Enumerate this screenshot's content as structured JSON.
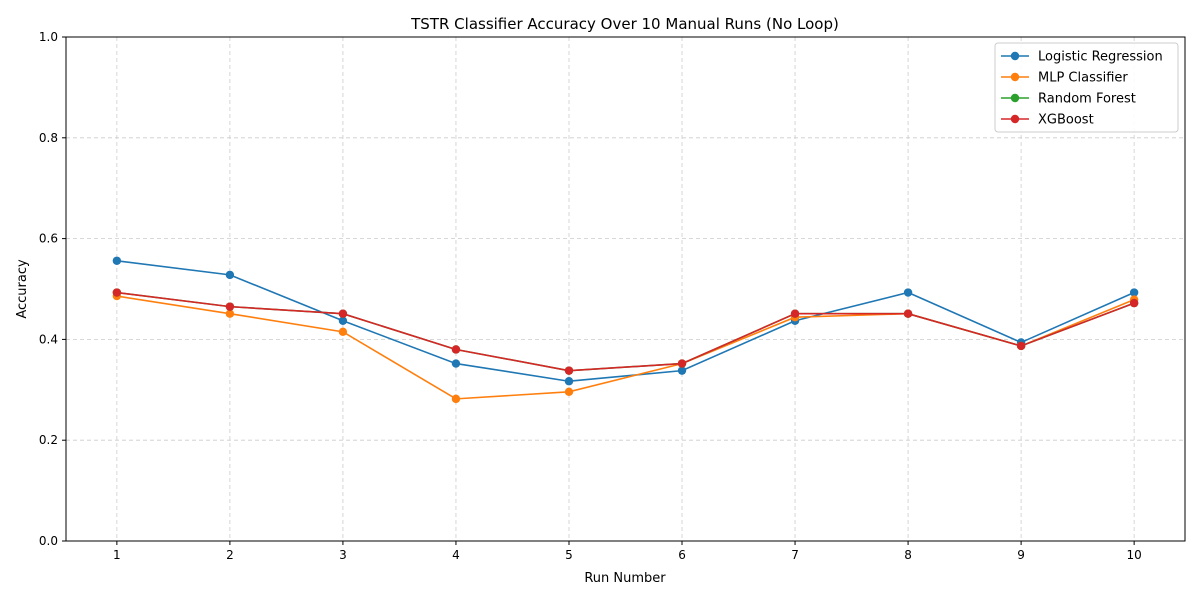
{
  "chart_data": {
    "type": "line",
    "title": "TSTR Classifier Accuracy Over 10 Manual Runs (No Loop)",
    "xlabel": "Run Number",
    "ylabel": "Accuracy",
    "x": [
      1,
      2,
      3,
      4,
      5,
      6,
      7,
      8,
      9,
      10
    ],
    "xticks": [
      "1",
      "2",
      "3",
      "4",
      "5",
      "6",
      "7",
      "8",
      "9",
      "10"
    ],
    "yticks": [
      "0.0",
      "0.2",
      "0.4",
      "0.6",
      "0.8",
      "1.0"
    ],
    "ylim": [
      0,
      1
    ],
    "xlim": [
      0.55,
      10.45
    ],
    "grid": true,
    "legend_position": "top-right",
    "series": [
      {
        "name": "Logistic Regression",
        "color": "#1f77b4",
        "values": [
          0.556,
          0.528,
          0.437,
          0.352,
          0.317,
          0.338,
          0.437,
          0.493,
          0.394,
          0.493
        ]
      },
      {
        "name": "MLP Classifier",
        "color": "#ff7f0e",
        "values": [
          0.486,
          0.451,
          0.415,
          0.282,
          0.296,
          0.352,
          0.444,
          0.451,
          0.387,
          0.479
        ]
      },
      {
        "name": "Random Forest",
        "color": "#2ca02c",
        "values": [
          0.493,
          0.465,
          0.451,
          0.38,
          0.338,
          0.352,
          0.451,
          0.451,
          0.387,
          0.472
        ]
      },
      {
        "name": "XGBoost",
        "color": "#d62728",
        "values": [
          0.493,
          0.465,
          0.451,
          0.38,
          0.338,
          0.352,
          0.451,
          0.451,
          0.387,
          0.472
        ]
      }
    ]
  }
}
